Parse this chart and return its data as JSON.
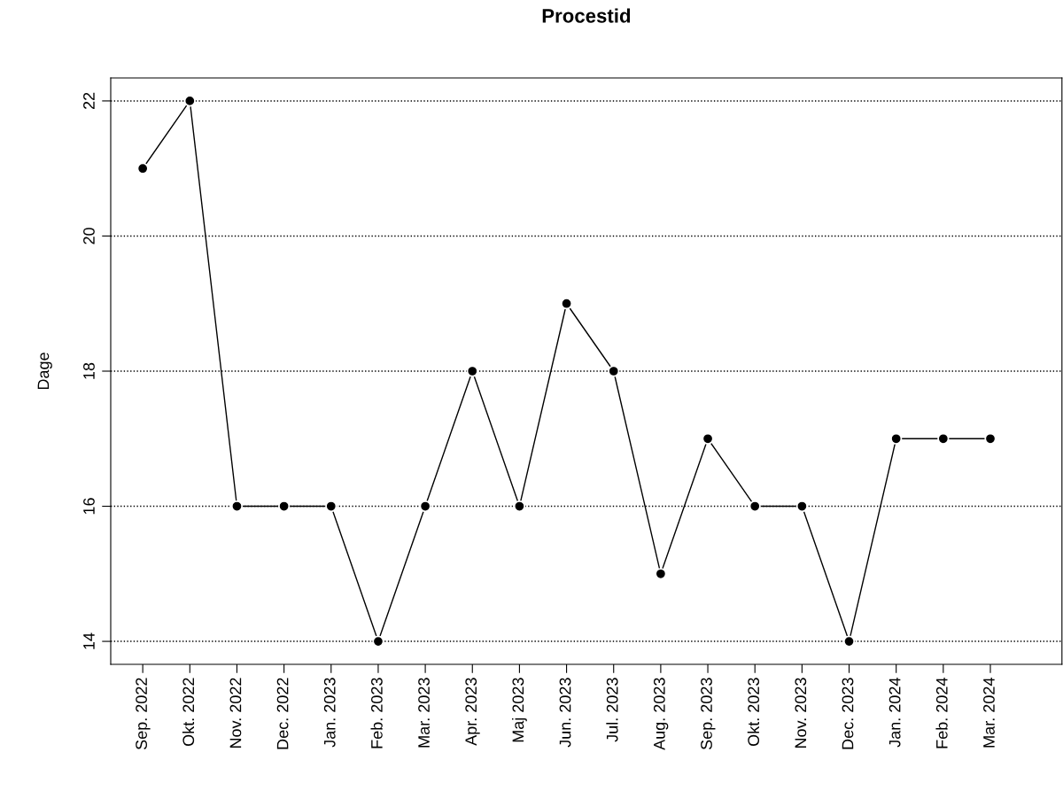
{
  "chart_data": {
    "type": "line",
    "title": "Procestid",
    "ylabel": "Dage",
    "categories": [
      "Sep. 2022",
      "Okt. 2022",
      "Nov. 2022",
      "Dec. 2022",
      "Jan. 2023",
      "Feb. 2023",
      "Mar. 2023",
      "Apr. 2023",
      "Maj 2023",
      "Jun. 2023",
      "Jul. 2023",
      "Aug. 2023",
      "Sep. 2023",
      "Okt. 2023",
      "Nov. 2023",
      "Dec. 2023",
      "Jan. 2024",
      "Feb. 2024",
      "Mar. 2024"
    ],
    "series": [
      {
        "color": "#000000",
        "values": [
          21,
          22,
          16,
          16,
          16,
          14,
          16,
          18,
          16,
          19,
          18,
          15,
          17,
          16,
          16,
          14,
          17,
          17,
          17
        ]
      }
    ],
    "ylim": [
      13.66,
      22.34
    ],
    "yticks": [
      14,
      16,
      18,
      20,
      22
    ],
    "grid": "y",
    "marker": "circle",
    "line_style": "solid"
  }
}
